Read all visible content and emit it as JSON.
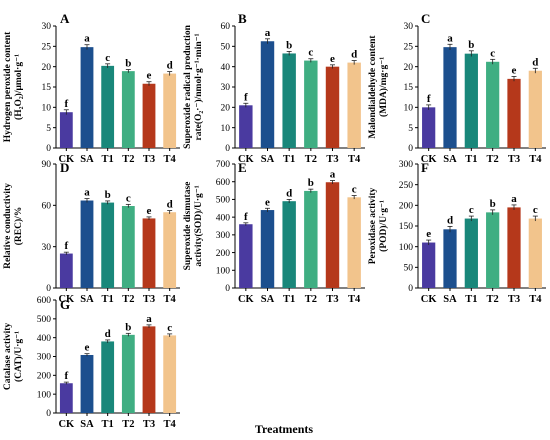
{
  "figure": {
    "xtitle": "Treatments",
    "colors": [
      "#4a3aa0",
      "#1c4f8e",
      "#19877a",
      "#3fae82",
      "#b5381b",
      "#f2c48c"
    ]
  },
  "chart_data": [
    {
      "type": "bar",
      "panel": "A",
      "ylabel_lines": [
        "Hydrogen peroxide content",
        "(H₂O₂)/μmol·g⁻¹"
      ],
      "categories": [
        "CK",
        "SA",
        "T1",
        "T2",
        "T3",
        "T4"
      ],
      "values": [
        8.8,
        24.8,
        20.2,
        18.9,
        15.8,
        18.3
      ],
      "errors": [
        0.6,
        0.6,
        0.5,
        0.4,
        0.5,
        0.5
      ],
      "letters": [
        "f",
        "a",
        "c",
        "b",
        "e",
        "d"
      ],
      "ylim": [
        0,
        30
      ],
      "yticks": [
        0,
        5,
        10,
        15,
        20,
        25,
        30
      ]
    },
    {
      "type": "bar",
      "panel": "B",
      "ylabel_lines": [
        "Superoxide radical production",
        "rate(O₂·⁻)/nmol·g⁻¹·min⁻¹"
      ],
      "categories": [
        "CK",
        "SA",
        "T1",
        "T2",
        "T3",
        "T4"
      ],
      "values": [
        21,
        52.5,
        46.5,
        43,
        40,
        42
      ],
      "errors": [
        1.0,
        1.2,
        1.0,
        0.9,
        0.9,
        1.0
      ],
      "letters": [
        "f",
        "a",
        "b",
        "c",
        "e",
        "d"
      ],
      "ylim": [
        0,
        60
      ],
      "yticks": [
        0,
        10,
        20,
        30,
        40,
        50,
        60
      ]
    },
    {
      "type": "bar",
      "panel": "C",
      "ylabel_lines": [
        "Malondialdehyde content",
        "(MDA)/mg·g⁻¹"
      ],
      "categories": [
        "CK",
        "SA",
        "T1",
        "T2",
        "T3",
        "T4"
      ],
      "values": [
        10,
        24.8,
        23.2,
        21.2,
        17,
        19
      ],
      "errors": [
        0.6,
        0.7,
        0.7,
        0.6,
        0.6,
        0.6
      ],
      "letters": [
        "f",
        "a",
        "b",
        "c",
        "e",
        "d"
      ],
      "ylim": [
        0,
        30
      ],
      "yticks": [
        0,
        5,
        10,
        15,
        20,
        25,
        30
      ]
    },
    {
      "type": "bar",
      "panel": "D",
      "ylabel_lines": [
        "Relative conductivity",
        "(REC)/%"
      ],
      "categories": [
        "CK",
        "SA",
        "T1",
        "T2",
        "T3",
        "T4"
      ],
      "values": [
        25,
        63.5,
        62,
        59.5,
        50.5,
        55
      ],
      "errors": [
        1.0,
        1.4,
        1.2,
        1.2,
        1.1,
        1.2
      ],
      "letters": [
        "f",
        "a",
        "b",
        "c",
        "e",
        "d"
      ],
      "ylim": [
        0,
        90
      ],
      "yticks": [
        0,
        30,
        60,
        90
      ]
    },
    {
      "type": "bar",
      "panel": "E",
      "ylabel_lines": [
        "Superoxide dismutase",
        "activity(SOD)/U·g⁻¹"
      ],
      "categories": [
        "CK",
        "SA",
        "T1",
        "T2",
        "T3",
        "T4"
      ],
      "values": [
        360,
        440,
        490,
        548,
        597,
        512
      ],
      "errors": [
        8,
        10,
        10,
        10,
        10,
        10
      ],
      "letters": [
        "f",
        "e",
        "d",
        "b",
        "a",
        "c"
      ],
      "ylim": [
        0,
        700
      ],
      "yticks": [
        0,
        100,
        200,
        300,
        400,
        500,
        600,
        700
      ]
    },
    {
      "type": "bar",
      "panel": "F",
      "ylabel_lines": [
        "Peroxidase activity",
        "(POD)/U·g⁻¹"
      ],
      "categories": [
        "CK",
        "SA",
        "T1",
        "T2",
        "T3",
        "T4"
      ],
      "values": [
        110,
        142,
        168,
        183,
        195,
        168
      ],
      "errors": [
        6,
        7,
        6,
        6,
        6,
        6
      ],
      "letters": [
        "e",
        "d",
        "c",
        "b",
        "a",
        "c"
      ],
      "ylim": [
        0,
        300
      ],
      "yticks": [
        0,
        50,
        100,
        150,
        200,
        250,
        300
      ]
    },
    {
      "type": "bar",
      "panel": "G",
      "ylabel_lines": [
        "Catalase activity",
        "(CAT)/U·g⁻¹"
      ],
      "categories": [
        "CK",
        "SA",
        "T1",
        "T2",
        "T3",
        "T4"
      ],
      "values": [
        158,
        308,
        380,
        415,
        460,
        412
      ],
      "errors": [
        6,
        7,
        8,
        8,
        8,
        8
      ],
      "letters": [
        "f",
        "e",
        "d",
        "b",
        "a",
        "c"
      ],
      "ylim": [
        0,
        600
      ],
      "yticks": [
        0,
        100,
        200,
        300,
        400,
        500,
        600
      ]
    }
  ]
}
